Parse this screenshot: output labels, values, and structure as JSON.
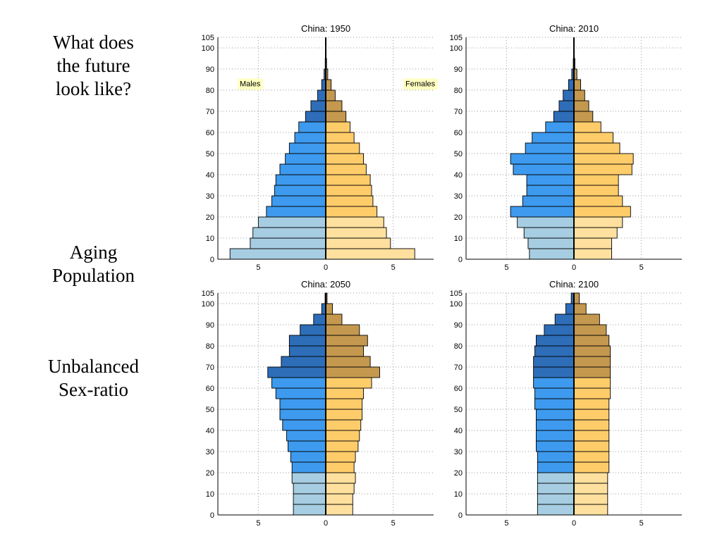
{
  "side_text": {
    "block1": [
      "What does",
      "the future",
      "look like?"
    ],
    "block2": [
      "Aging",
      "Population"
    ],
    "block3": [
      "Unbalanced",
      "Sex-ratio"
    ]
  },
  "colors": {
    "male_young": "#a6cde2",
    "male_working": "#3d9aee",
    "male_old": "#2e6db8",
    "female_young": "#ffe09e",
    "female_working": "#ffcc6a",
    "female_old": "#c4984e",
    "legend_bg": "#ffffc0"
  },
  "chart_data": [
    {
      "type": "bar",
      "subtype": "population-pyramid",
      "title": "China: 1950",
      "legend": {
        "male": "Males",
        "female": "Females",
        "placement": "inside-top"
      },
      "age_groups": [
        "0-4",
        "5-9",
        "10-14",
        "15-19",
        "20-24",
        "25-29",
        "30-34",
        "35-39",
        "40-44",
        "45-49",
        "50-54",
        "55-59",
        "60-64",
        "65-69",
        "70-74",
        "75-79",
        "80-84",
        "85-89",
        "90-94",
        "95-99",
        "100+"
      ],
      "males": [
        7.1,
        5.6,
        5.4,
        5.0,
        4.4,
        4.0,
        3.8,
        3.7,
        3.4,
        3.0,
        2.7,
        2.3,
        2.0,
        1.5,
        1.1,
        0.6,
        0.3,
        0.12,
        0.04,
        0.01,
        0.0
      ],
      "females": [
        6.6,
        4.8,
        4.5,
        4.3,
        3.8,
        3.5,
        3.4,
        3.3,
        3.0,
        2.8,
        2.5,
        2.1,
        1.8,
        1.5,
        1.2,
        0.7,
        0.4,
        0.15,
        0.06,
        0.02,
        0.0
      ],
      "xlim": [
        -8,
        8
      ],
      "ylim": [
        0,
        105
      ],
      "xticks": [
        -5,
        0,
        5
      ],
      "xtick_labels": [
        "5",
        "0",
        "5"
      ],
      "yticks": [
        0,
        10,
        20,
        30,
        40,
        50,
        60,
        70,
        80,
        90,
        100,
        105
      ],
      "grid": true
    },
    {
      "type": "bar",
      "subtype": "population-pyramid",
      "title": "China: 2010",
      "age_groups": [
        "0-4",
        "5-9",
        "10-14",
        "15-19",
        "20-24",
        "25-29",
        "30-34",
        "35-39",
        "40-44",
        "45-49",
        "50-54",
        "55-59",
        "60-64",
        "65-69",
        "70-74",
        "75-79",
        "80-84",
        "85-89",
        "90-94",
        "95-99",
        "100+"
      ],
      "males": [
        3.3,
        3.4,
        3.7,
        4.2,
        4.7,
        3.8,
        3.5,
        3.5,
        4.5,
        4.7,
        3.6,
        3.1,
        2.1,
        1.5,
        1.1,
        0.8,
        0.4,
        0.16,
        0.05,
        0.01,
        0.0
      ],
      "females": [
        2.8,
        2.8,
        3.2,
        3.6,
        4.2,
        3.6,
        3.3,
        3.3,
        4.3,
        4.4,
        3.4,
        2.9,
        2.0,
        1.4,
        1.1,
        0.8,
        0.5,
        0.22,
        0.07,
        0.02,
        0.0
      ],
      "xlim": [
        -8,
        8
      ],
      "ylim": [
        0,
        105
      ],
      "xticks": [
        -5,
        0,
        5
      ],
      "xtick_labels": [
        "5",
        "0",
        "5"
      ],
      "yticks": [
        0,
        10,
        20,
        30,
        40,
        50,
        60,
        70,
        80,
        90,
        100,
        105
      ],
      "grid": true
    },
    {
      "type": "bar",
      "subtype": "population-pyramid",
      "title": "China: 2050",
      "age_groups": [
        "0-4",
        "5-9",
        "10-14",
        "15-19",
        "20-24",
        "25-29",
        "30-34",
        "35-39",
        "40-44",
        "45-49",
        "50-54",
        "55-59",
        "60-64",
        "65-69",
        "70-74",
        "75-79",
        "80-84",
        "85-89",
        "90-94",
        "95-99",
        "100+"
      ],
      "males": [
        2.4,
        2.4,
        2.4,
        2.5,
        2.5,
        2.6,
        2.8,
        2.9,
        3.2,
        3.4,
        3.4,
        3.7,
        4.0,
        4.3,
        3.3,
        2.7,
        2.7,
        1.9,
        0.9,
        0.3,
        0.05
      ],
      "females": [
        2.0,
        2.0,
        2.1,
        2.2,
        2.1,
        2.2,
        2.4,
        2.5,
        2.6,
        2.7,
        2.7,
        2.8,
        3.4,
        4.0,
        3.3,
        2.8,
        3.1,
        2.5,
        1.2,
        0.5,
        0.1
      ],
      "xlim": [
        -8,
        8
      ],
      "ylim": [
        0,
        105
      ],
      "xticks": [
        -5,
        0,
        5
      ],
      "xtick_labels": [
        "5",
        "0",
        "5"
      ],
      "yticks": [
        0,
        10,
        20,
        30,
        40,
        50,
        60,
        70,
        80,
        90,
        100,
        105
      ],
      "grid": true
    },
    {
      "type": "bar",
      "subtype": "population-pyramid",
      "title": "China: 2100",
      "age_groups": [
        "0-4",
        "5-9",
        "10-14",
        "15-19",
        "20-24",
        "25-29",
        "30-34",
        "35-39",
        "40-44",
        "45-49",
        "50-54",
        "55-59",
        "60-64",
        "65-69",
        "70-74",
        "75-79",
        "80-84",
        "85-89",
        "90-94",
        "95-99",
        "100+"
      ],
      "males": [
        2.7,
        2.7,
        2.7,
        2.7,
        2.7,
        2.7,
        2.8,
        2.8,
        2.8,
        2.8,
        2.9,
        2.9,
        3.0,
        3.0,
        3.0,
        2.9,
        2.8,
        2.2,
        1.4,
        0.6,
        0.2
      ],
      "females": [
        2.5,
        2.5,
        2.5,
        2.5,
        2.6,
        2.6,
        2.6,
        2.6,
        2.6,
        2.6,
        2.6,
        2.7,
        2.7,
        2.7,
        2.7,
        2.7,
        2.6,
        2.4,
        1.9,
        0.9,
        0.4
      ],
      "xlim": [
        -8,
        8
      ],
      "ylim": [
        0,
        105
      ],
      "xticks": [
        -5,
        0,
        5
      ],
      "xtick_labels": [
        "5",
        "0",
        "5"
      ],
      "yticks": [
        0,
        10,
        20,
        30,
        40,
        50,
        60,
        70,
        80,
        90,
        100,
        105
      ],
      "grid": true
    }
  ]
}
